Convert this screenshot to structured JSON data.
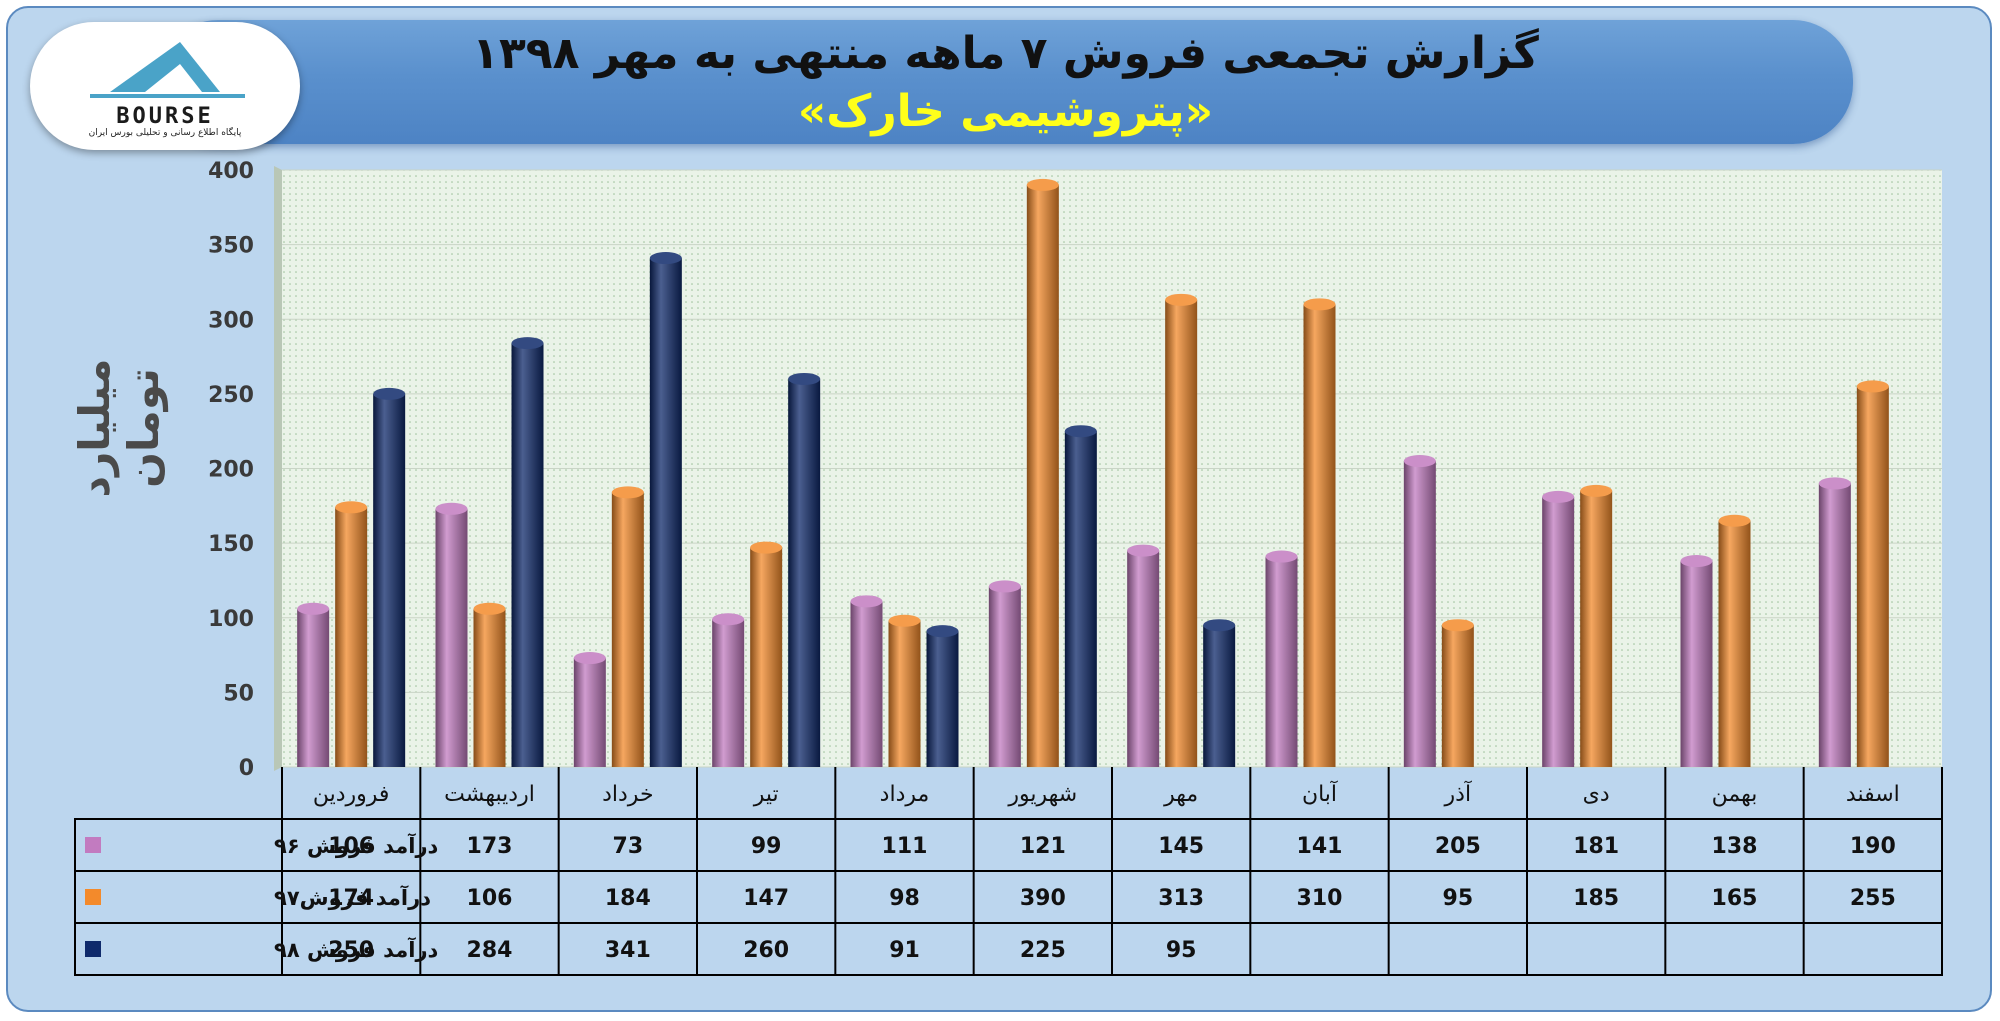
{
  "header": {
    "title": "گزارش تجمعی فروش ۷ ماهه منتهی به مهر ۱۳۹۸",
    "subtitle": "«پتروشیمی خارک»"
  },
  "logo": {
    "text": "BOURSE",
    "subtext": "پایگاه اطلاع رسانی و تحلیلی بورس ایران"
  },
  "colors": {
    "series_96": "#c27bc0",
    "series_97": "#f38a2b",
    "series_98": "#0f2a6b",
    "plot_bg": "#eaf3e8",
    "grid": "#c9d4c6"
  },
  "chart_data": {
    "type": "bar",
    "ylabel": "میلیارد تومان",
    "ylim": [
      0,
      400
    ],
    "yticks": [
      0,
      50,
      100,
      150,
      200,
      250,
      300,
      350,
      400
    ],
    "grid": true,
    "categories": [
      "فروردین",
      "اردیبهشت",
      "خرداد",
      "تیر",
      "مرداد",
      "شهریور",
      "مهر",
      "آبان",
      "آذر",
      "دی",
      "بهمن",
      "اسفند"
    ],
    "series": [
      {
        "name": "درآمد فروش ۹۶",
        "color": "#c27bc0",
        "values": [
          106,
          173,
          73,
          99,
          111,
          121,
          145,
          141,
          205,
          181,
          138,
          190
        ]
      },
      {
        "name": "درآمد فروش۹۷",
        "color": "#f38a2b",
        "values": [
          174,
          106,
          184,
          147,
          98,
          390,
          313,
          310,
          95,
          185,
          165,
          255
        ]
      },
      {
        "name": "درآمد فروش ۹۸",
        "color": "#0f2a6b",
        "values": [
          250,
          284,
          341,
          260,
          91,
          225,
          95,
          null,
          null,
          null,
          null,
          null
        ]
      }
    ]
  }
}
